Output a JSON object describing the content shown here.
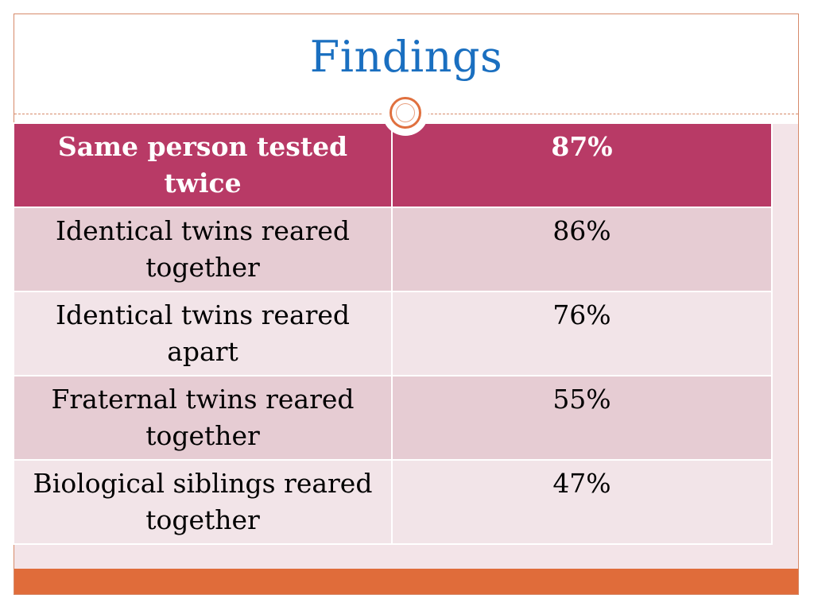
{
  "slide": {
    "title": "Findings"
  },
  "table": {
    "header": {
      "label": "Same person tested twice",
      "value": "87%"
    },
    "rows": [
      {
        "label": "Identical twins reared together",
        "value": "86%"
      },
      {
        "label": "Identical twins reared apart",
        "value": "76%"
      },
      {
        "label": "Fraternal twins reared together",
        "value": "55%"
      },
      {
        "label": "Biological siblings reared together",
        "value": "47%"
      }
    ]
  },
  "colors": {
    "title": "#1a6fc0",
    "header_bg": "#b83a66",
    "row_odd_bg": "#e6ccd3",
    "row_even_bg": "#f2e4e8",
    "accent": "#e06c3a"
  }
}
